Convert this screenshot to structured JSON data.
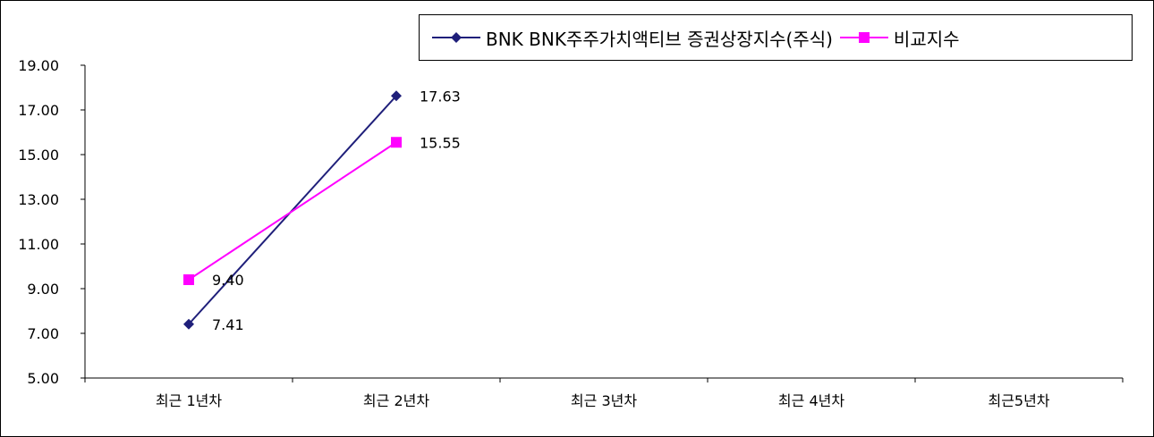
{
  "chart_data": {
    "type": "line",
    "categories": [
      "최근 1년차",
      "최근 2년차",
      "최근 3년차",
      "최근 4년차",
      "최근5년차"
    ],
    "series": [
      {
        "name": "BNK BNK주주가치액티브 증권상장지수(주식)",
        "values": [
          7.41,
          17.63,
          null,
          null,
          null
        ],
        "color": "#1f1f7a",
        "marker": "diamond",
        "labels": [
          "7.41",
          "17.63"
        ]
      },
      {
        "name": "비교지수",
        "values": [
          9.4,
          15.55,
          null,
          null,
          null
        ],
        "color": "#ff00ff",
        "marker": "square",
        "labels": [
          "9.40",
          "15.55"
        ]
      }
    ],
    "y_ticks": [
      "5.00",
      "7.00",
      "9.00",
      "11.00",
      "13.00",
      "15.00",
      "17.00",
      "19.00"
    ],
    "ylim": [
      5,
      19
    ],
    "grid": false,
    "legend_position": "top-right"
  }
}
